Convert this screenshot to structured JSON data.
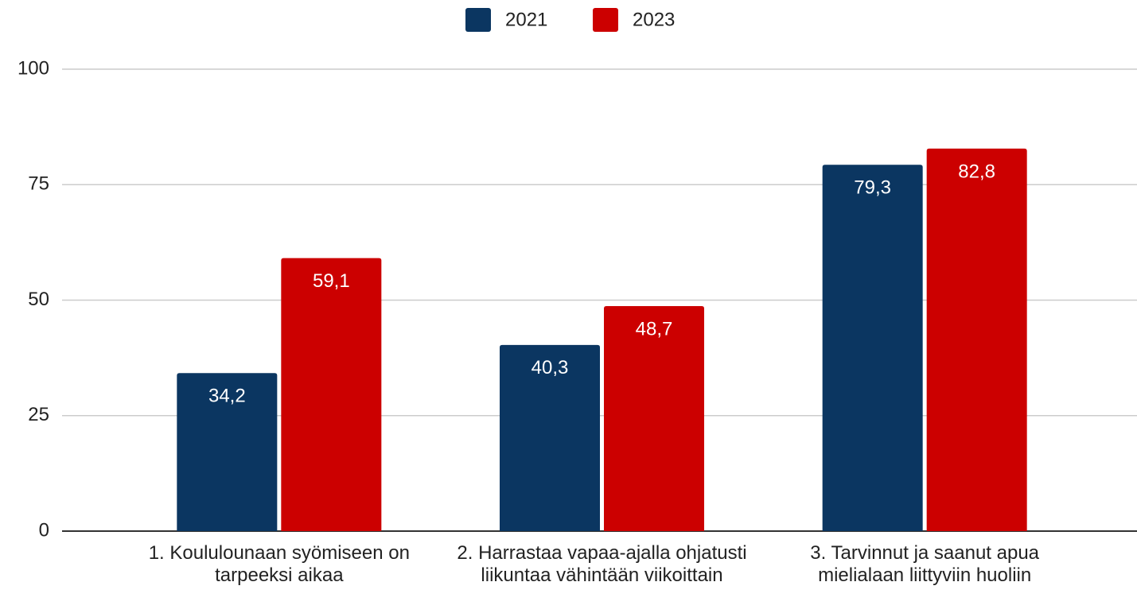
{
  "chart_data": {
    "type": "bar",
    "categories": [
      "1. Koululounaan syömiseen on tarpeeksi aikaa",
      "2. Harrastaa vapaa-ajalla ohjatusti liikuntaa vähintään viikoittain",
      "3. Tarvinnut ja saanut apua mielialaan liittyviin huoliin"
    ],
    "series": [
      {
        "name": "2021",
        "color": "#0b3661",
        "values": [
          34.2,
          40.3,
          79.3
        ],
        "value_labels": [
          "34,2",
          "40,3",
          "79,3"
        ]
      },
      {
        "name": "2023",
        "color": "#cc0000",
        "values": [
          59.1,
          48.7,
          82.8
        ],
        "value_labels": [
          "59,1",
          "48,7",
          "82,8"
        ]
      }
    ],
    "ylim": [
      0,
      100
    ],
    "yticks": [
      0,
      25,
      50,
      75,
      100
    ],
    "grid": true,
    "legend": "top"
  }
}
